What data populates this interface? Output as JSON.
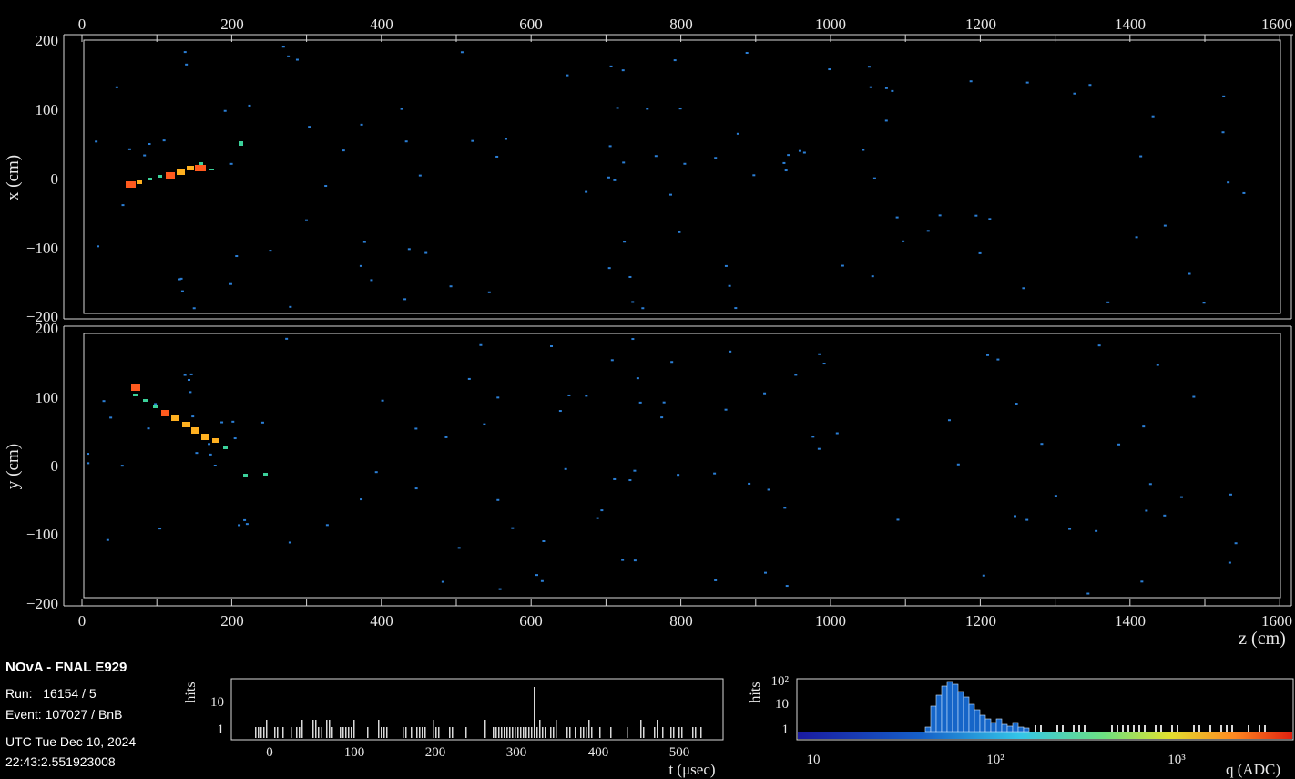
{
  "xz_view": {
    "ylabel": "x (cm)",
    "top_ticks": [
      "0",
      "200",
      "400",
      "600",
      "800",
      "1000",
      "1200",
      "1400",
      "1600"
    ],
    "y_ticks": [
      "200",
      "100",
      "0",
      "−100",
      "−200"
    ]
  },
  "yz_view": {
    "ylabel": "y (cm)",
    "y_ticks": [
      "200",
      "100",
      "0",
      "−100",
      "−200"
    ],
    "x_ticks": [
      "0",
      "200",
      "400",
      "600",
      "800",
      "1000",
      "1200",
      "1400",
      "1600"
    ],
    "xlabel": "z (cm)"
  },
  "info": {
    "title": "NOvA - FNAL E929",
    "run": "Run:   16154 / 5",
    "event": "Event: 107027 / BnB",
    "date": "UTC Tue Dec 10, 2024",
    "time": "22:43:2.551923008"
  },
  "time_hist": {
    "ylabel": "hits",
    "y_ticks": [
      "10",
      "1"
    ],
    "x_ticks": [
      "0",
      "100",
      "200",
      "300",
      "400",
      "500"
    ],
    "xlabel": "t (μsec)"
  },
  "charge_hist": {
    "ylabel": "hits",
    "y_ticks": [
      "10²",
      "10",
      "1"
    ],
    "x_ticks": [
      "10",
      "10²",
      "10³"
    ],
    "xlabel": "q (ADC)"
  },
  "colors": {
    "frame": "#d8d8d8",
    "hit_high": "#ff5a1e",
    "hit_mid": "#ffb020",
    "hit_low": "#3bd19a",
    "noise": "#2b7fd6"
  }
}
